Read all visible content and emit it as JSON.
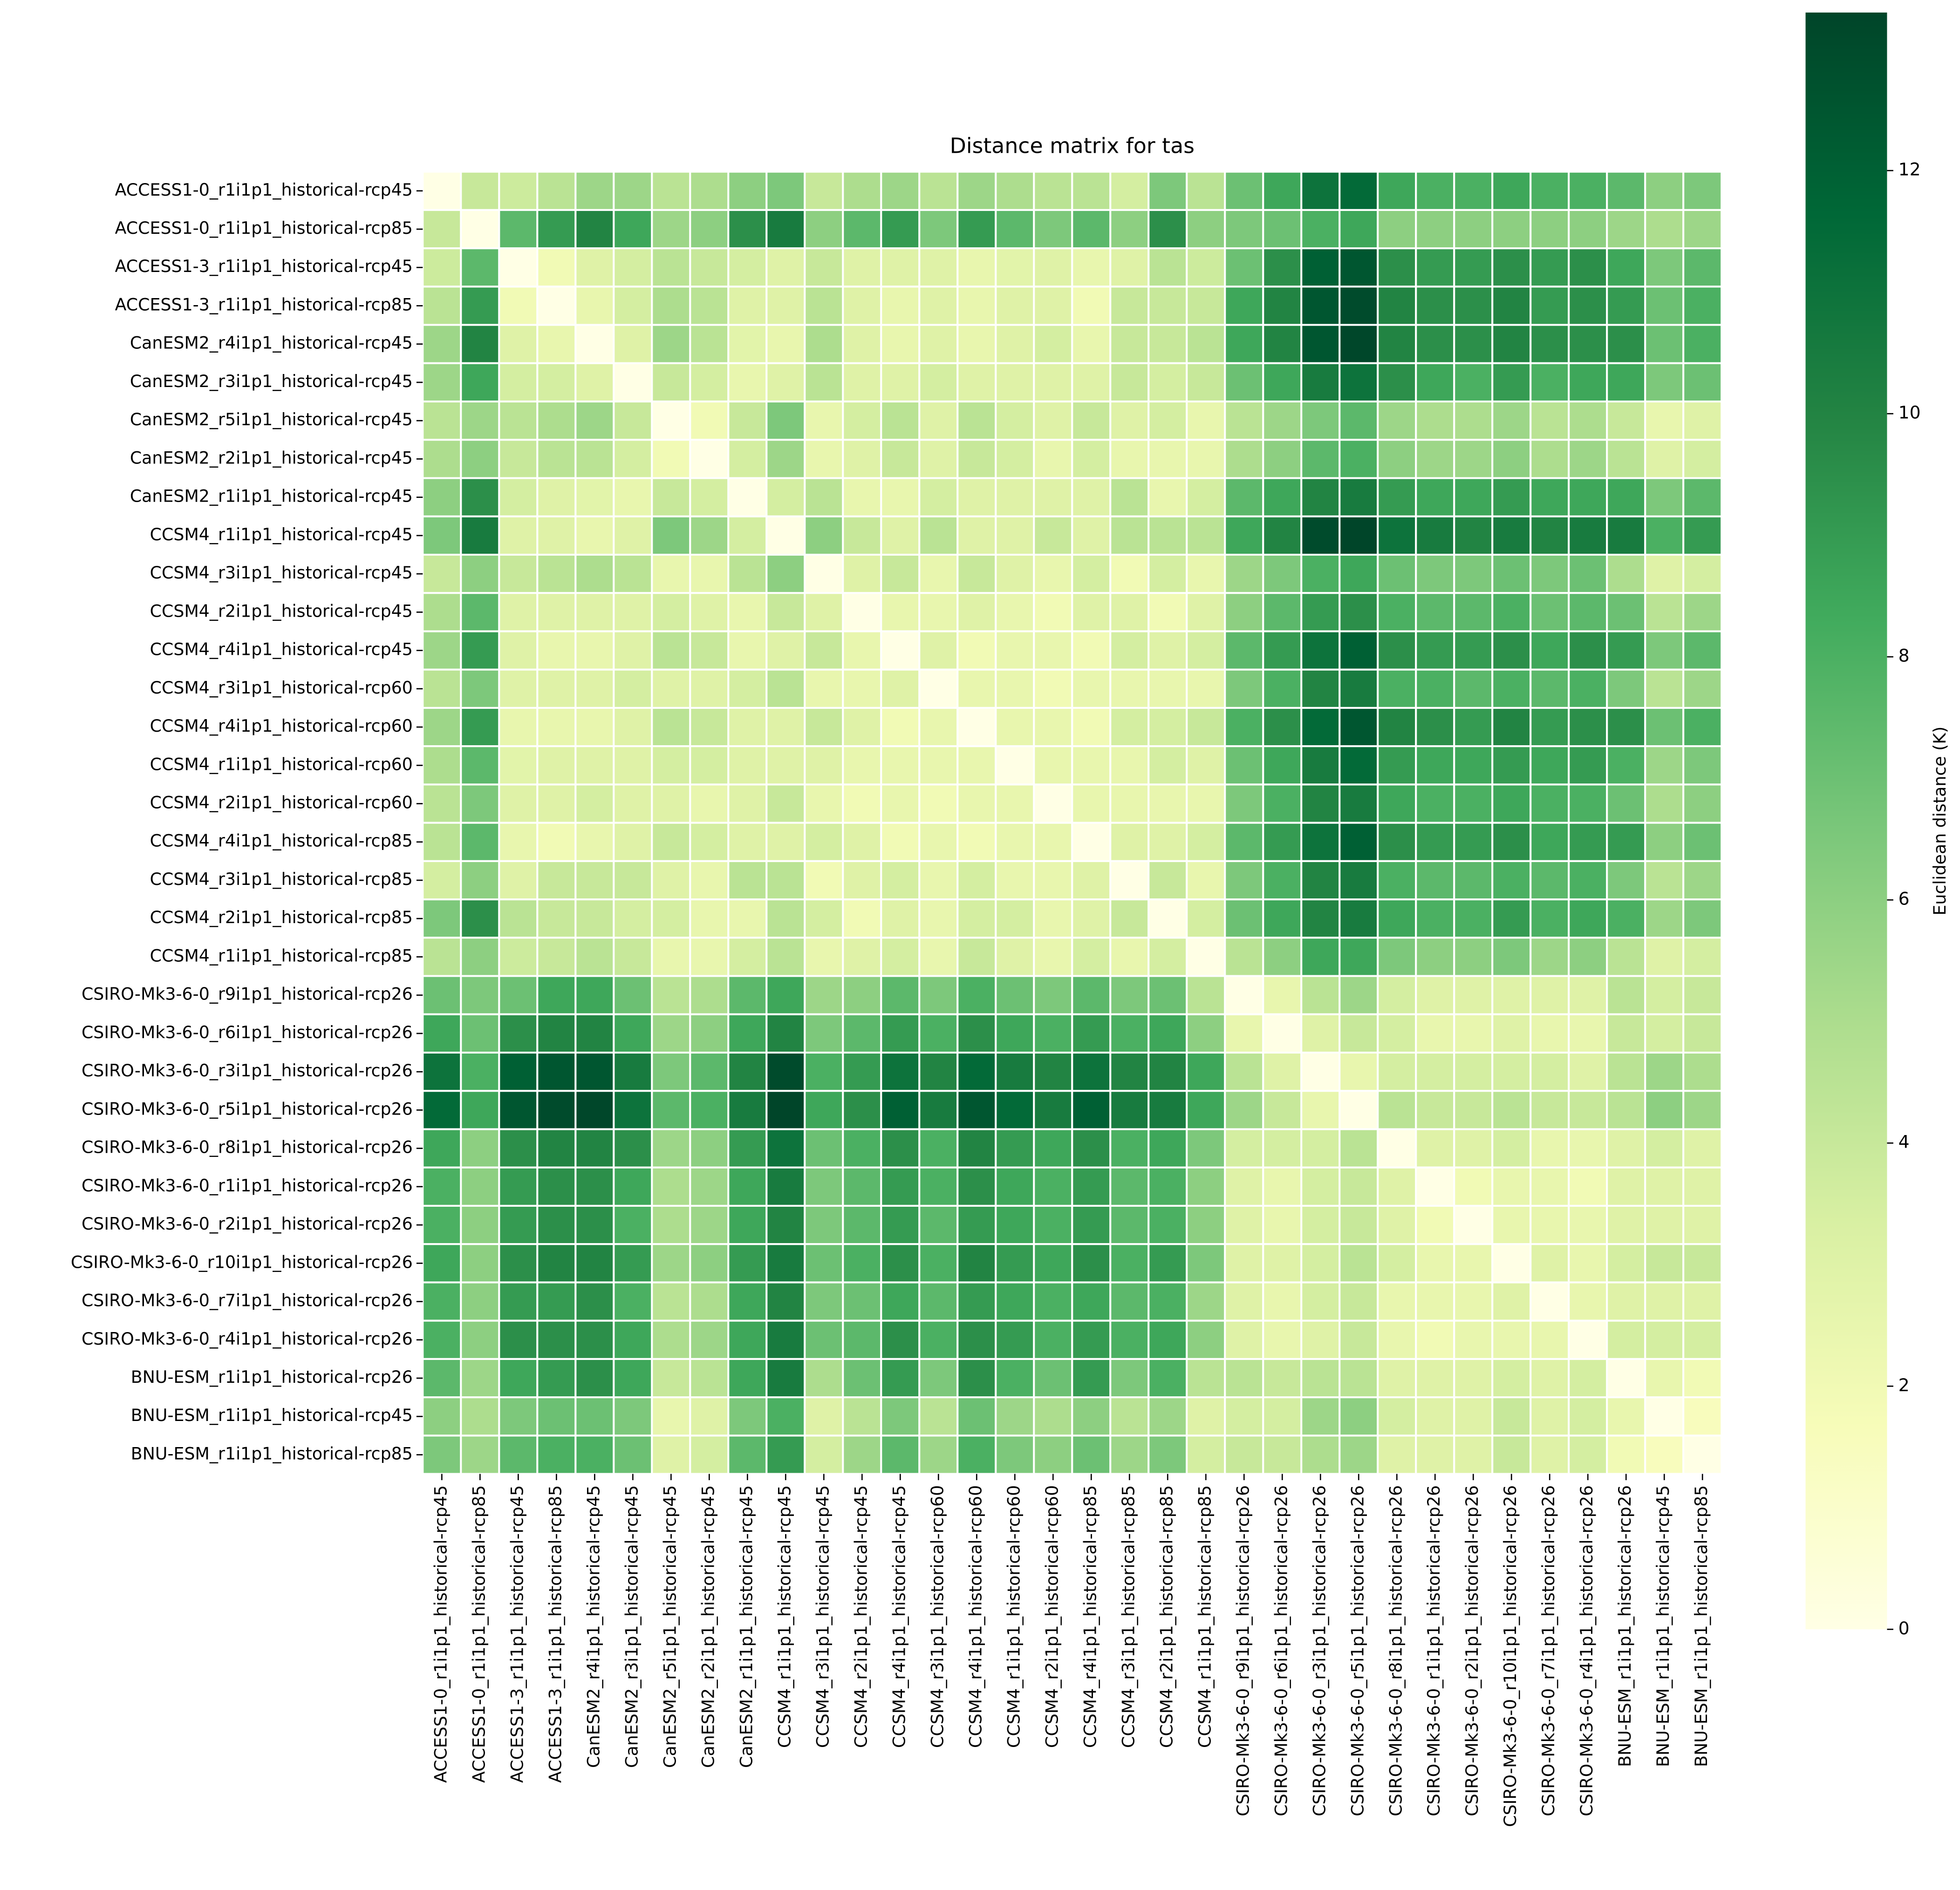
{
  "chart_data": {
    "type": "heatmap",
    "title": "Distance matrix for tas",
    "colorbar_label": "Euclidean distance (K)",
    "colormap": "YlGn",
    "clim": [
      0,
      13.3
    ],
    "cticks": [
      0,
      2,
      4,
      6,
      8,
      10,
      12
    ],
    "categories": [
      "ACCESS1-0_r1i1p1_historical-rcp45",
      "ACCESS1-0_r1i1p1_historical-rcp85",
      "ACCESS1-3_r1i1p1_historical-rcp45",
      "ACCESS1-3_r1i1p1_historical-rcp85",
      "CanESM2_r4i1p1_historical-rcp45",
      "CanESM2_r3i1p1_historical-rcp45",
      "CanESM2_r5i1p1_historical-rcp45",
      "CanESM2_r2i1p1_historical-rcp45",
      "CanESM2_r1i1p1_historical-rcp45",
      "CCSM4_r1i1p1_historical-rcp45",
      "CCSM4_r3i1p1_historical-rcp45",
      "CCSM4_r2i1p1_historical-rcp45",
      "CCSM4_r4i1p1_historical-rcp45",
      "CCSM4_r3i1p1_historical-rcp60",
      "CCSM4_r4i1p1_historical-rcp60",
      "CCSM4_r1i1p1_historical-rcp60",
      "CCSM4_r2i1p1_historical-rcp60",
      "CCSM4_r4i1p1_historical-rcp85",
      "CCSM4_r3i1p1_historical-rcp85",
      "CCSM4_r2i1p1_historical-rcp85",
      "CCSM4_r1i1p1_historical-rcp85",
      "CSIRO-Mk3-6-0_r9i1p1_historical-rcp26",
      "CSIRO-Mk3-6-0_r6i1p1_historical-rcp26",
      "CSIRO-Mk3-6-0_r3i1p1_historical-rcp26",
      "CSIRO-Mk3-6-0_r5i1p1_historical-rcp26",
      "CSIRO-Mk3-6-0_r8i1p1_historical-rcp26",
      "CSIRO-Mk3-6-0_r1i1p1_historical-rcp26",
      "CSIRO-Mk3-6-0_r2i1p1_historical-rcp26",
      "CSIRO-Mk3-6-0_r10i1p1_historical-rcp26",
      "CSIRO-Mk3-6-0_r7i1p1_historical-rcp26",
      "CSIRO-Mk3-6-0_r4i1p1_historical-rcp26",
      "BNU-ESM_r1i1p1_historical-rcp26",
      "BNU-ESM_r1i1p1_historical-rcp45",
      "BNU-ESM_r1i1p1_historical-rcp85"
    ],
    "values": [
      [
        0,
        4,
        3.8,
        4.5,
        5.5,
        5.5,
        4.5,
        5,
        6,
        6.5,
        4,
        5,
        5.5,
        4.5,
        5.5,
        5,
        4.5,
        4.5,
        3.5,
        6.5,
        4.5,
        7,
        8.5,
        11,
        11.5,
        8.5,
        8,
        8,
        8.5,
        8,
        8,
        7.5,
        6,
        6.5
      ],
      [
        4,
        0,
        7.5,
        9,
        10,
        8.5,
        5.5,
        6,
        9.5,
        10.5,
        6,
        7.5,
        9,
        6.5,
        9,
        7.5,
        6.5,
        7.5,
        6,
        9.5,
        6,
        6.5,
        7,
        8,
        8.5,
        6,
        6,
        6,
        6,
        6,
        6,
        5.5,
        5,
        5.5
      ],
      [
        3.8,
        7.5,
        0,
        2,
        3,
        3.5,
        4.5,
        4,
        3.5,
        3,
        4,
        3,
        3,
        3,
        2.5,
        2.8,
        3,
        2.5,
        3,
        4.5,
        3.8,
        7,
        9.5,
        12,
        12.5,
        9.5,
        9,
        9,
        9.5,
        9,
        9.5,
        8.5,
        6.5,
        7.5
      ],
      [
        4.5,
        9,
        2,
        0,
        2.5,
        3.5,
        5,
        4.5,
        3,
        3,
        4.5,
        3,
        2.5,
        3,
        2.5,
        3,
        3,
        2,
        4,
        4,
        4,
        8.5,
        10,
        12.5,
        13,
        10,
        9.5,
        9.5,
        10,
        9,
        9.5,
        9,
        7,
        8
      ],
      [
        5.5,
        10,
        3,
        2.5,
        0,
        3,
        5.5,
        4.5,
        2.8,
        2.5,
        5,
        3,
        2.5,
        3,
        2.5,
        3,
        3.5,
        2.5,
        4,
        4,
        4.5,
        8.5,
        10,
        12.5,
        13.2,
        10,
        9.5,
        9.5,
        10,
        9.5,
        9.5,
        9.5,
        7,
        8
      ],
      [
        5.5,
        8.5,
        3.5,
        3.5,
        3,
        0,
        4,
        3.5,
        2.5,
        3,
        4.5,
        3,
        3,
        3.5,
        3,
        3,
        3,
        3,
        4,
        3.5,
        4,
        7,
        8.5,
        10.5,
        11,
        9.5,
        8.5,
        8,
        9,
        8,
        8.5,
        8.5,
        6.5,
        7
      ],
      [
        4.5,
        5.5,
        4.5,
        5,
        5.5,
        4,
        0,
        2,
        4,
        6.5,
        2.5,
        3.5,
        4.5,
        3,
        4.5,
        3.5,
        3,
        4,
        3,
        3.5,
        2.5,
        4.5,
        5.5,
        6.5,
        7.5,
        5.5,
        5,
        5,
        5.5,
        4.5,
        5,
        4,
        2.5,
        3
      ],
      [
        5,
        6,
        4,
        4.5,
        4.5,
        3.5,
        2,
        0,
        3.5,
        5.5,
        2.5,
        3,
        4,
        3,
        4,
        3.5,
        2.5,
        3.5,
        2.5,
        2.5,
        2.5,
        5,
        6,
        7.5,
        8,
        6,
        5.5,
        5.5,
        6,
        5,
        5.5,
        4.5,
        3,
        3.5
      ],
      [
        6,
        9.5,
        3.5,
        3,
        2.8,
        2.5,
        4,
        3.5,
        0,
        3.5,
        4.5,
        2.5,
        2.5,
        3.5,
        3,
        3,
        3,
        3,
        4.5,
        2.5,
        3.5,
        7.5,
        8.5,
        10,
        10.5,
        9,
        8.5,
        8.5,
        9,
        8.5,
        8.5,
        8.5,
        6.5,
        7.5
      ],
      [
        6.5,
        10.5,
        3,
        3,
        2.5,
        3,
        6.5,
        5.5,
        3.5,
        0,
        6,
        4,
        3,
        4.5,
        3,
        3,
        4,
        3,
        4.5,
        4.5,
        4.5,
        8.5,
        10,
        13,
        13.3,
        11,
        10.5,
        10,
        10.5,
        10,
        10.5,
        10.5,
        8,
        9
      ],
      [
        4,
        6,
        4,
        4.5,
        5,
        4.5,
        2.5,
        2.5,
        4.5,
        6,
        0,
        3,
        4,
        2.5,
        4,
        3,
        2.5,
        3.5,
        2,
        3.5,
        2.5,
        5.5,
        6.5,
        8,
        8.5,
        7,
        6.5,
        6.5,
        7,
        6.5,
        7,
        5,
        3,
        3.5
      ],
      [
        5,
        7.5,
        3,
        3,
        3,
        3,
        3.5,
        3,
        2.5,
        4,
        3,
        0,
        2.5,
        2.5,
        3,
        2.5,
        2,
        3,
        3,
        2,
        3,
        6,
        7.5,
        9,
        9.5,
        8,
        7.5,
        7.5,
        8,
        7,
        7.5,
        7,
        4.5,
        5.5
      ],
      [
        5.5,
        9,
        3,
        2.5,
        2.5,
        3,
        4.5,
        4,
        2.5,
        3,
        4,
        2.5,
        0,
        3,
        2,
        2.5,
        2.5,
        2,
        3.5,
        3,
        3.5,
        7.5,
        9,
        11,
        12,
        9.5,
        9,
        9,
        9.5,
        8.5,
        9.5,
        9,
        6.5,
        7.5
      ],
      [
        4.5,
        6.5,
        3,
        3,
        3,
        3.5,
        3,
        3,
        3.5,
        4.5,
        2.5,
        2.5,
        3,
        0,
        2.5,
        2.5,
        2,
        2.5,
        2.5,
        2.5,
        2.5,
        6.5,
        8,
        10,
        10.5,
        8,
        8,
        7.5,
        8,
        7.5,
        8,
        6.5,
        4.5,
        5.5
      ],
      [
        5.5,
        9,
        2.5,
        2.5,
        2.5,
        3,
        4.5,
        4,
        3,
        3,
        4,
        3,
        2,
        2.5,
        0,
        2.5,
        2.5,
        2,
        3.5,
        3.5,
        4,
        8,
        9.5,
        11.5,
        12.5,
        10,
        9.5,
        9,
        10,
        9,
        9.5,
        9.5,
        7,
        8
      ],
      [
        5,
        7.5,
        2.8,
        3,
        3,
        3,
        3.5,
        3.5,
        3,
        3,
        3,
        2.5,
        2.5,
        2.5,
        2.5,
        0,
        2.5,
        2.5,
        2.5,
        3.5,
        3,
        7,
        8.5,
        10.5,
        11.5,
        9,
        8.5,
        8.5,
        9,
        8.5,
        9,
        8,
        5.5,
        6.5
      ],
      [
        4.5,
        6.5,
        3,
        3,
        3.5,
        3,
        3,
        2.5,
        3,
        4,
        2.5,
        2,
        2.5,
        2,
        2.5,
        2.5,
        0,
        2.5,
        2.5,
        2.5,
        2.5,
        6.5,
        8,
        10,
        10.5,
        8.5,
        8,
        8,
        8.5,
        8,
        8,
        7,
        5,
        6
      ],
      [
        4.5,
        7.5,
        2.5,
        2,
        2.5,
        3,
        4,
        3.5,
        3,
        3,
        3.5,
        3,
        2,
        2.5,
        2,
        2.5,
        2.5,
        0,
        3,
        3,
        3.5,
        7.5,
        9,
        11,
        12,
        9.5,
        9,
        9,
        9.5,
        8.5,
        9,
        9,
        6,
        7
      ],
      [
        3.5,
        6,
        3,
        4,
        4,
        4,
        3,
        2.5,
        4.5,
        4.5,
        2,
        3,
        3.5,
        2.5,
        3.5,
        2.5,
        2.5,
        3,
        0,
        4,
        2.5,
        6.5,
        8,
        10,
        10.5,
        8,
        7.5,
        7.5,
        8,
        7.5,
        8,
        6.5,
        4.5,
        5.5
      ],
      [
        6.5,
        9.5,
        4.5,
        4,
        4,
        3.5,
        3.5,
        2.5,
        2.5,
        4.5,
        3.5,
        2,
        3,
        2.5,
        3.5,
        3.5,
        2.5,
        3,
        4,
        0,
        3.5,
        7,
        8.5,
        10,
        10.5,
        8.5,
        8,
        8,
        9,
        8,
        8.5,
        8,
        5.5,
        6.5
      ],
      [
        4.5,
        6,
        3.8,
        4,
        4.5,
        4,
        2.5,
        2.5,
        3.5,
        4.5,
        2.5,
        3,
        3.5,
        2.5,
        4,
        3,
        2.5,
        3.5,
        2.5,
        3.5,
        0,
        4.5,
        6,
        8.5,
        8.5,
        6.5,
        6,
        6,
        6.5,
        5.5,
        6,
        4.5,
        3,
        3.5
      ],
      [
        7,
        6.5,
        7,
        8.5,
        8.5,
        7,
        4.5,
        5,
        7.5,
        8.5,
        5.5,
        6,
        7.5,
        6.5,
        8,
        7,
        6.5,
        7.5,
        6.5,
        7,
        4.5,
        0,
        2.5,
        4.5,
        5.5,
        3.5,
        3,
        3,
        3,
        3,
        3,
        4.5,
        3.5,
        4
      ],
      [
        8.5,
        7,
        9.5,
        10,
        10,
        8.5,
        5.5,
        6,
        8.5,
        10,
        6.5,
        7.5,
        9,
        8,
        9.5,
        8.5,
        8,
        9,
        8,
        8.5,
        6,
        2.5,
        0,
        3,
        4,
        3.5,
        2.5,
        2.5,
        3,
        2.5,
        2.5,
        4,
        3.5,
        4
      ],
      [
        11,
        8,
        12,
        12.5,
        12.5,
        10.5,
        6.5,
        7.5,
        10,
        13,
        8,
        9,
        11,
        10,
        11.5,
        10.5,
        10,
        11,
        10,
        10,
        8.5,
        4.5,
        3,
        0,
        2.5,
        3.5,
        3.5,
        3.5,
        3.5,
        3.5,
        3,
        4.5,
        5.5,
        5
      ],
      [
        11.5,
        8.5,
        12.5,
        13,
        13.2,
        11,
        7.5,
        8,
        10.5,
        13.3,
        8.5,
        9.5,
        12,
        10.5,
        12.5,
        11.5,
        10.5,
        12,
        10.5,
        10.5,
        8.5,
        5.5,
        4,
        2.5,
        0,
        4.5,
        4,
        4,
        4.5,
        4,
        4,
        4.5,
        6,
        5.5
      ],
      [
        8.5,
        6,
        9.5,
        10,
        10,
        9.5,
        5.5,
        6,
        9,
        11,
        7,
        8,
        9.5,
        8,
        10,
        9,
        8.5,
        9.5,
        8,
        8.5,
        6.5,
        3.5,
        3.5,
        3.5,
        4.5,
        0,
        3,
        3,
        3.5,
        2.5,
        2.5,
        3,
        3.5,
        3
      ],
      [
        8,
        6,
        9,
        9.5,
        9.5,
        8.5,
        5,
        5.5,
        8.5,
        10.5,
        6.5,
        7.5,
        9,
        8,
        9.5,
        8.5,
        8,
        9,
        7.5,
        8,
        6,
        3,
        2.5,
        3.5,
        4,
        3,
        0,
        2,
        2.5,
        2.5,
        2,
        3,
        3,
        3
      ],
      [
        8,
        6,
        9,
        9.5,
        9.5,
        8,
        5,
        5.5,
        8.5,
        10,
        6.5,
        7.5,
        9,
        7.5,
        9,
        8.5,
        8,
        9,
        7.5,
        8,
        6,
        3,
        2.5,
        3.5,
        4,
        3,
        2,
        0,
        2.5,
        2.5,
        2.5,
        3,
        3,
        3
      ],
      [
        8.5,
        6,
        9.5,
        10,
        10,
        9,
        5.5,
        6,
        9,
        10.5,
        7,
        8,
        9.5,
        8,
        10,
        9,
        8.5,
        9.5,
        8,
        9,
        6.5,
        3,
        3,
        3.5,
        4.5,
        3.5,
        2.5,
        2.5,
        0,
        3,
        2.5,
        3.5,
        4,
        4
      ],
      [
        8,
        6,
        9,
        9,
        9.5,
        8,
        4.5,
        5,
        8.5,
        10,
        6.5,
        7,
        8.5,
        7.5,
        9,
        8.5,
        8,
        8.5,
        7.5,
        8,
        5.5,
        3,
        2.5,
        3.5,
        4,
        2.5,
        2.5,
        2.5,
        3,
        0,
        2.5,
        3,
        3,
        3
      ],
      [
        8,
        6,
        9.5,
        9.5,
        9.5,
        8.5,
        5,
        5.5,
        8.5,
        10.5,
        7,
        7.5,
        9.5,
        8,
        9.5,
        9,
        8,
        9,
        8,
        8.5,
        6,
        3,
        2.5,
        3,
        4,
        2.5,
        2,
        2.5,
        2.5,
        2.5,
        0,
        3.5,
        3.5,
        3.5
      ],
      [
        7.5,
        5.5,
        8.5,
        9,
        9.5,
        8.5,
        4,
        4.5,
        8.5,
        10.5,
        5,
        7,
        9,
        6.5,
        9.5,
        8,
        7,
        9,
        6.5,
        8,
        4.5,
        4.5,
        4,
        4.5,
        4.5,
        3,
        3,
        3,
        3.5,
        3,
        3.5,
        0,
        2.5,
        2
      ],
      [
        6,
        5,
        6.5,
        7,
        7,
        6.5,
        2.5,
        3,
        6.5,
        8,
        3,
        4.5,
        6.5,
        4.5,
        7,
        5.5,
        5,
        6,
        4.5,
        5.5,
        3,
        3.5,
        3.5,
        5.5,
        6,
        3.5,
        3,
        3,
        4,
        3,
        3.5,
        2.5,
        0,
        1.5
      ],
      [
        6.5,
        5.5,
        7.5,
        8,
        8,
        7,
        3,
        3.5,
        7.5,
        9,
        3.5,
        5.5,
        7.5,
        5.5,
        8,
        6.5,
        6,
        7,
        5.5,
        6.5,
        3.5,
        4,
        4,
        5,
        5.5,
        3,
        3,
        3,
        4,
        3,
        3.5,
        2,
        1.5,
        0
      ]
    ]
  }
}
